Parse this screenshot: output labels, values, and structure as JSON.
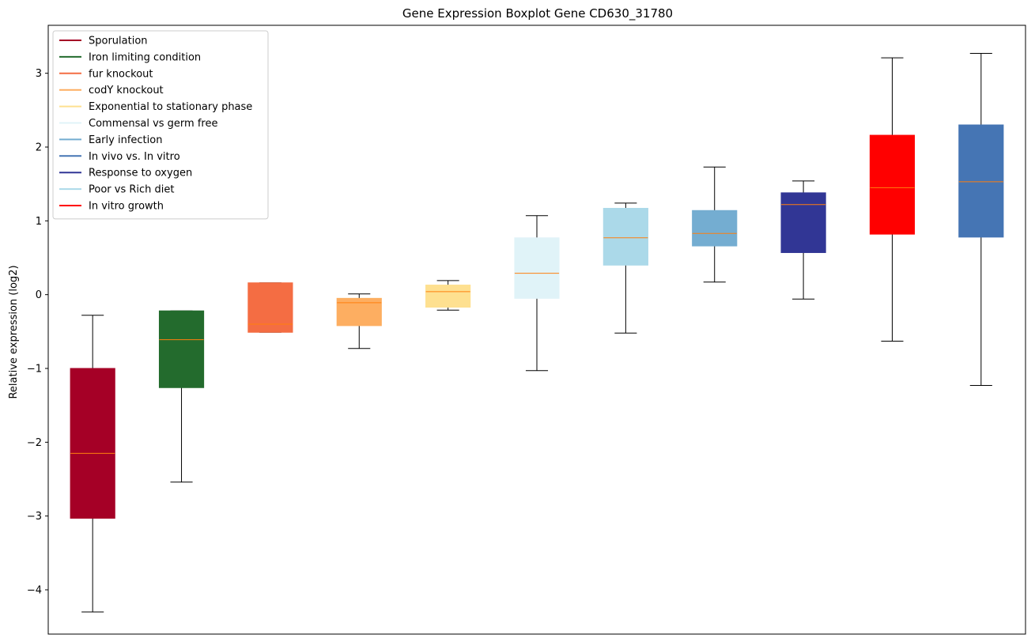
{
  "chart_data": {
    "type": "boxplot",
    "title": "Gene Expression Boxplot Gene CD630_31780",
    "xlabel": "",
    "ylabel": "Relative expression (log2)",
    "ylim": [
      -4.6,
      3.65
    ],
    "yticks": [
      -4,
      -3,
      -2,
      -1,
      0,
      1,
      2,
      3
    ],
    "ytick_labels": [
      "−4",
      "−3",
      "−2",
      "−1",
      "0",
      "1",
      "2",
      "3"
    ],
    "grid": false,
    "legend_position": "top-left",
    "median_color": "#ff7f0e",
    "legend": [
      {
        "label": "Sporulation",
        "color": "#a50026"
      },
      {
        "label": "Iron limiting condition",
        "color": "#236b2d"
      },
      {
        "label": "fur knockout",
        "color": "#f46d43"
      },
      {
        "label": "codY knockout",
        "color": "#fdae61"
      },
      {
        "label": "Exponential to stationary phase",
        "color": "#fee090"
      },
      {
        "label": "Commensal vs germ free",
        "color": "#e0f3f8"
      },
      {
        "label": "Early infection",
        "color": "#74add1"
      },
      {
        "label": "In vivo vs. In vitro",
        "color": "#4575b4"
      },
      {
        "label": "Response to oxygen",
        "color": "#313695"
      },
      {
        "label": "Poor vs Rich diet",
        "color": "#abd9e9"
      },
      {
        "label": "In vitro growth",
        "color": "#ff0000"
      }
    ],
    "boxes": [
      {
        "name": "Sporulation",
        "color": "#a50026",
        "whislo": -4.3,
        "q1": -3.03,
        "med": -2.15,
        "q3": -1.0,
        "whishi": -0.28
      },
      {
        "name": "Iron limiting condition",
        "color": "#236b2d",
        "whislo": -2.54,
        "q1": -1.26,
        "med": -0.61,
        "q3": -0.22,
        "whishi": -0.22
      },
      {
        "name": "fur knockout",
        "color": "#f46d43",
        "whislo": -0.51,
        "q1": -0.51,
        "med": -0.4,
        "q3": 0.16,
        "whishi": 0.16
      },
      {
        "name": "codY knockout",
        "color": "#fdae61",
        "whislo": -0.73,
        "q1": -0.42,
        "med": -0.11,
        "q3": -0.05,
        "whishi": 0.01
      },
      {
        "name": "Exponential to stationary phase",
        "color": "#fee090",
        "whislo": -0.21,
        "q1": -0.17,
        "med": 0.04,
        "q3": 0.13,
        "whishi": 0.19
      },
      {
        "name": "Commensal vs germ free",
        "color": "#e0f3f8",
        "whislo": -1.03,
        "q1": -0.05,
        "med": 0.29,
        "q3": 0.77,
        "whishi": 1.07
      },
      {
        "name": "Poor vs Rich diet",
        "color": "#abd9e9",
        "whislo": -0.52,
        "q1": 0.4,
        "med": 0.77,
        "q3": 1.17,
        "whishi": 1.24
      },
      {
        "name": "Early infection",
        "color": "#74add1",
        "whislo": 0.17,
        "q1": 0.66,
        "med": 0.83,
        "q3": 1.14,
        "whishi": 1.73
      },
      {
        "name": "Response to oxygen",
        "color": "#313695",
        "whislo": -0.06,
        "q1": 0.57,
        "med": 1.22,
        "q3": 1.38,
        "whishi": 1.54
      },
      {
        "name": "In vitro growth",
        "color": "#ff0000",
        "whislo": -0.63,
        "q1": 0.82,
        "med": 1.45,
        "q3": 2.16,
        "whishi": 3.21
      },
      {
        "name": "In vivo vs. In vitro",
        "color": "#4575b4",
        "whislo": -1.23,
        "q1": 0.78,
        "med": 1.53,
        "q3": 2.3,
        "whishi": 3.27
      }
    ]
  }
}
